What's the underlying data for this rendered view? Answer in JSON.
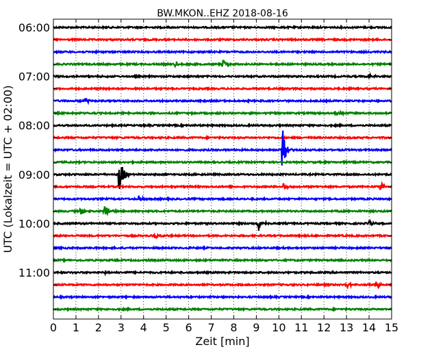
{
  "chart_data": {
    "type": "line",
    "title": "BW.MKON..EHZ 2018-08-16",
    "xlabel": "Zeit  [min]",
    "ylabel": "UTC (Lokalzeit = UTC + 02:00)",
    "xlim": [
      0,
      15
    ],
    "x_ticks": [
      "0",
      "1",
      "2",
      "3",
      "4",
      "5",
      "6",
      "7",
      "8",
      "9",
      "10",
      "11",
      "12",
      "13",
      "14",
      "15"
    ],
    "y_ticks": [
      "06:00",
      "07:00",
      "08:00",
      "09:00",
      "10:00",
      "11:00"
    ],
    "grid": "vertical dotted",
    "line_interval_minutes": 15,
    "trace_color_cycle": [
      "#000000",
      "#ff0000",
      "#0000ff",
      "#008000"
    ],
    "traces": [
      {
        "start": "06:00",
        "color": "#000000",
        "events": []
      },
      {
        "start": "06:15",
        "color": "#ff0000",
        "events": []
      },
      {
        "start": "06:30",
        "color": "#0000ff",
        "events": []
      },
      {
        "start": "06:45",
        "color": "#008000",
        "events": [
          {
            "t": 5.4,
            "amp": 0.3
          },
          {
            "t": 7.5,
            "amp": 0.5
          }
        ]
      },
      {
        "start": "07:00",
        "color": "#000000",
        "events": [
          {
            "t": 14.0,
            "amp": 0.25
          }
        ]
      },
      {
        "start": "07:15",
        "color": "#ff0000",
        "events": []
      },
      {
        "start": "07:30",
        "color": "#0000ff",
        "events": [
          {
            "t": 1.4,
            "amp": 0.35
          }
        ]
      },
      {
        "start": "07:45",
        "color": "#008000",
        "events": [
          {
            "t": 12.5,
            "amp": 0.55
          }
        ]
      },
      {
        "start": "08:00",
        "color": "#000000",
        "events": []
      },
      {
        "start": "08:15",
        "color": "#ff0000",
        "events": []
      },
      {
        "start": "08:30",
        "color": "#0000ff",
        "events": [
          {
            "t": 10.15,
            "amp": 2.0
          }
        ]
      },
      {
        "start": "08:45",
        "color": "#008000",
        "events": []
      },
      {
        "start": "09:00",
        "color": "#000000",
        "events": [
          {
            "t": 2.9,
            "amp": 2.0
          }
        ]
      },
      {
        "start": "09:15",
        "color": "#ff0000",
        "events": [
          {
            "t": 10.2,
            "amp": 0.4
          },
          {
            "t": 14.5,
            "amp": 0.45
          }
        ]
      },
      {
        "start": "09:30",
        "color": "#0000ff",
        "events": [
          {
            "t": 3.8,
            "amp": 0.3
          }
        ]
      },
      {
        "start": "09:45",
        "color": "#008000",
        "events": [
          {
            "t": 1.2,
            "amp": 0.35
          },
          {
            "t": 2.25,
            "amp": 0.7
          }
        ]
      },
      {
        "start": "10:00",
        "color": "#000000",
        "events": [
          {
            "t": 9.1,
            "amp": 0.7
          },
          {
            "t": 14.0,
            "amp": 0.25
          }
        ]
      },
      {
        "start": "10:15",
        "color": "#ff0000",
        "events": [
          {
            "t": 4.5,
            "amp": 0.3
          }
        ]
      },
      {
        "start": "10:30",
        "color": "#0000ff",
        "events": []
      },
      {
        "start": "10:45",
        "color": "#008000",
        "events": []
      },
      {
        "start": "11:00",
        "color": "#000000",
        "events": [
          {
            "t": 2.3,
            "amp": 0.2
          }
        ]
      },
      {
        "start": "11:15",
        "color": "#ff0000",
        "events": [
          {
            "t": 13.0,
            "amp": 0.3
          },
          {
            "t": 14.3,
            "amp": 0.35
          }
        ]
      },
      {
        "start": "11:30",
        "color": "#0000ff",
        "events": []
      },
      {
        "start": "11:45",
        "color": "#008000",
        "events": []
      }
    ]
  }
}
